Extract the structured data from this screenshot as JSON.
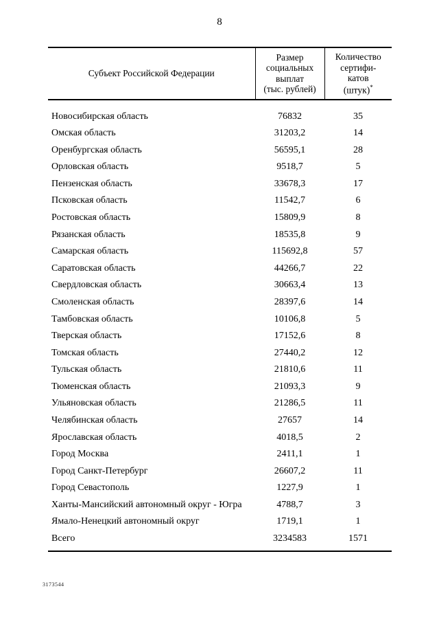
{
  "page": {
    "number": "8",
    "stamp": "3173544"
  },
  "table": {
    "headers": {
      "col1": "Субъект Российской Федерации",
      "col2": "Размер\nсоциальных\nвыплат\n(тыс. рублей)",
      "col3": "Количество\nсертифи-\nкатов\n(штук)",
      "col3_footnote_mark": "*"
    },
    "rows": [
      {
        "name": "Новосибирская область",
        "amount": "76832",
        "count": "35"
      },
      {
        "name": "Омская область",
        "amount": "31203,2",
        "count": "14"
      },
      {
        "name": "Оренбургская область",
        "amount": "56595,1",
        "count": "28"
      },
      {
        "name": "Орловская область",
        "amount": "9518,7",
        "count": "5"
      },
      {
        "name": "Пензенская область",
        "amount": "33678,3",
        "count": "17"
      },
      {
        "name": "Псковская область",
        "amount": "11542,7",
        "count": "6"
      },
      {
        "name": "Ростовская область",
        "amount": "15809,9",
        "count": "8"
      },
      {
        "name": "Рязанская область",
        "amount": "18535,8",
        "count": "9"
      },
      {
        "name": "Самарская область",
        "amount": "115692,8",
        "count": "57"
      },
      {
        "name": "Саратовская область",
        "amount": "44266,7",
        "count": "22"
      },
      {
        "name": "Свердловская область",
        "amount": "30663,4",
        "count": "13"
      },
      {
        "name": "Смоленская область",
        "amount": "28397,6",
        "count": "14"
      },
      {
        "name": "Тамбовская область",
        "amount": "10106,8",
        "count": "5"
      },
      {
        "name": "Тверская область",
        "amount": "17152,6",
        "count": "8"
      },
      {
        "name": "Томская область",
        "amount": "27440,2",
        "count": "12"
      },
      {
        "name": "Тульская область",
        "amount": "21810,6",
        "count": "11"
      },
      {
        "name": "Тюменская область",
        "amount": "21093,3",
        "count": "9"
      },
      {
        "name": "Ульяновская область",
        "amount": "21286,5",
        "count": "11"
      },
      {
        "name": "Челябинская область",
        "amount": "27657",
        "count": "14"
      },
      {
        "name": "Ярославская область",
        "amount": "4018,5",
        "count": "2"
      },
      {
        "name": "Город Москва",
        "amount": "2411,1",
        "count": "1"
      },
      {
        "name": "Город Санкт-Петербург",
        "amount": "26607,2",
        "count": "11"
      },
      {
        "name": "Город Севастополь",
        "amount": "1227,9",
        "count": "1"
      },
      {
        "name": "Ханты-Мансийский автономный округ - Югра",
        "amount": "4788,7",
        "count": "3"
      },
      {
        "name": "Ямало-Ненецкий автономный округ",
        "amount": "1719,1",
        "count": "1"
      }
    ],
    "total": {
      "name": "Всего",
      "amount": "3234583",
      "count": "1571"
    }
  }
}
